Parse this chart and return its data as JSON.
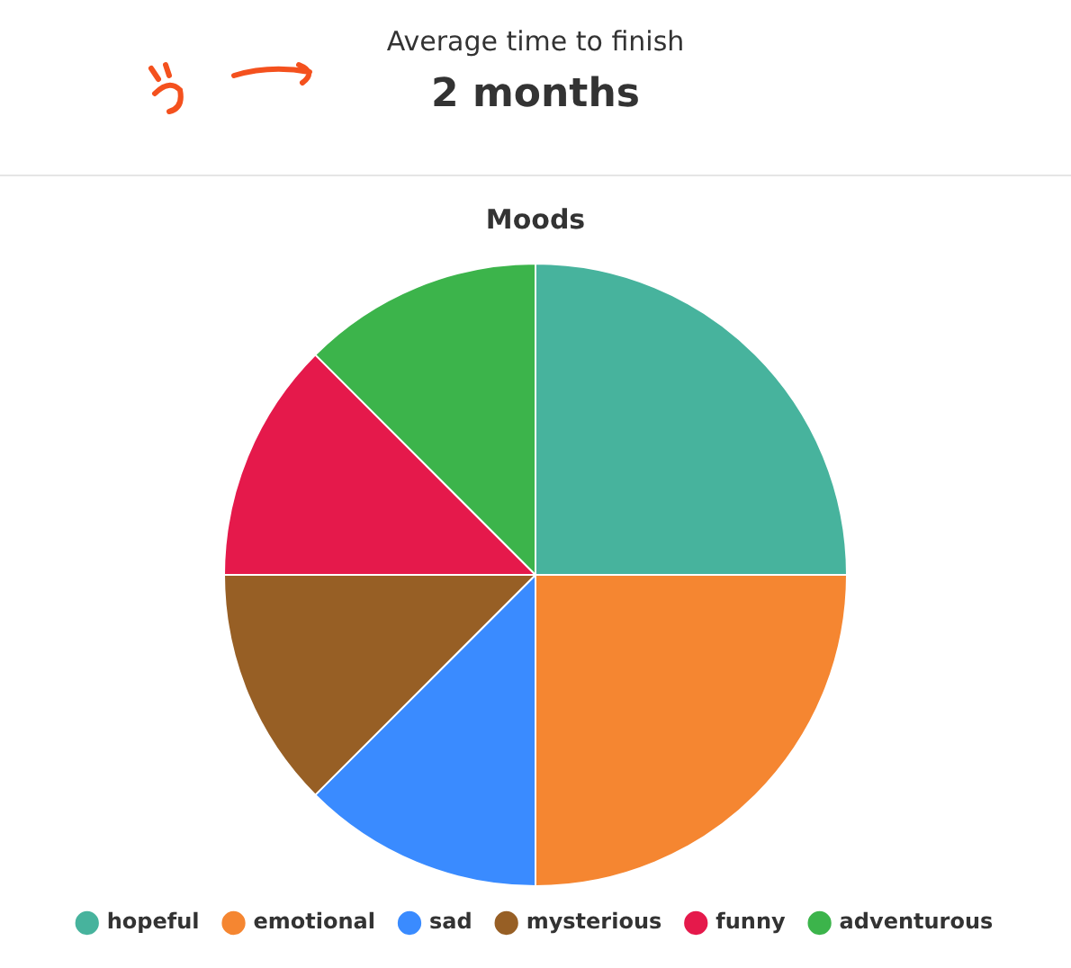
{
  "chart_data": [
    {
      "type": "other",
      "title": "Average time to finish",
      "subtitle": "2 months"
    },
    {
      "type": "pie",
      "title": "Moods",
      "categories": [
        "hopeful",
        "emotional",
        "sad",
        "mysterious",
        "funny",
        "adventurous"
      ],
      "values": [
        25,
        25,
        12.5,
        12.5,
        12.5,
        12.5
      ],
      "colors": [
        "#47b39d",
        "#f58631",
        "#3a8bff",
        "#975f25",
        "#e5194b",
        "#3cb44b"
      ],
      "legend": "bottom"
    }
  ]
}
